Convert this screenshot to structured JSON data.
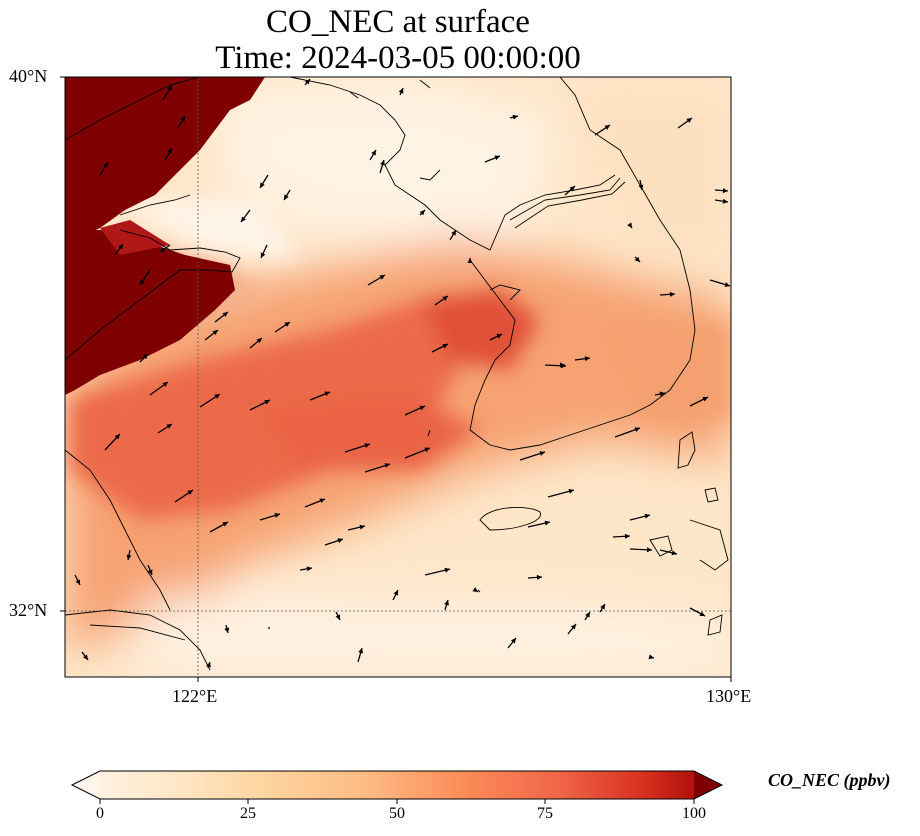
{
  "title": {
    "line1": "CO_NEC at surface",
    "line2": "Time: 2024-03-05 00:00:00"
  },
  "map": {
    "lat_labels": [
      "40°N",
      "32°N"
    ],
    "lon_labels": [
      "122°E",
      "130°E"
    ],
    "extent": {
      "lon_min": 120,
      "lon_max": 130,
      "lat_min": 31,
      "lat_max": 40
    }
  },
  "colorbar": {
    "label": "CO_NEC (ppbv)",
    "ticks": [
      "0",
      "25",
      "50",
      "75",
      "100"
    ],
    "min": 0,
    "max": 100,
    "extend": "both",
    "colormap": [
      "#fff5eb",
      "#fee6ce",
      "#fdd0a2",
      "#fdae6b",
      "#fd8d3c",
      "#f16913",
      "#d94801",
      "#a63603",
      "#7f0000"
    ]
  }
}
